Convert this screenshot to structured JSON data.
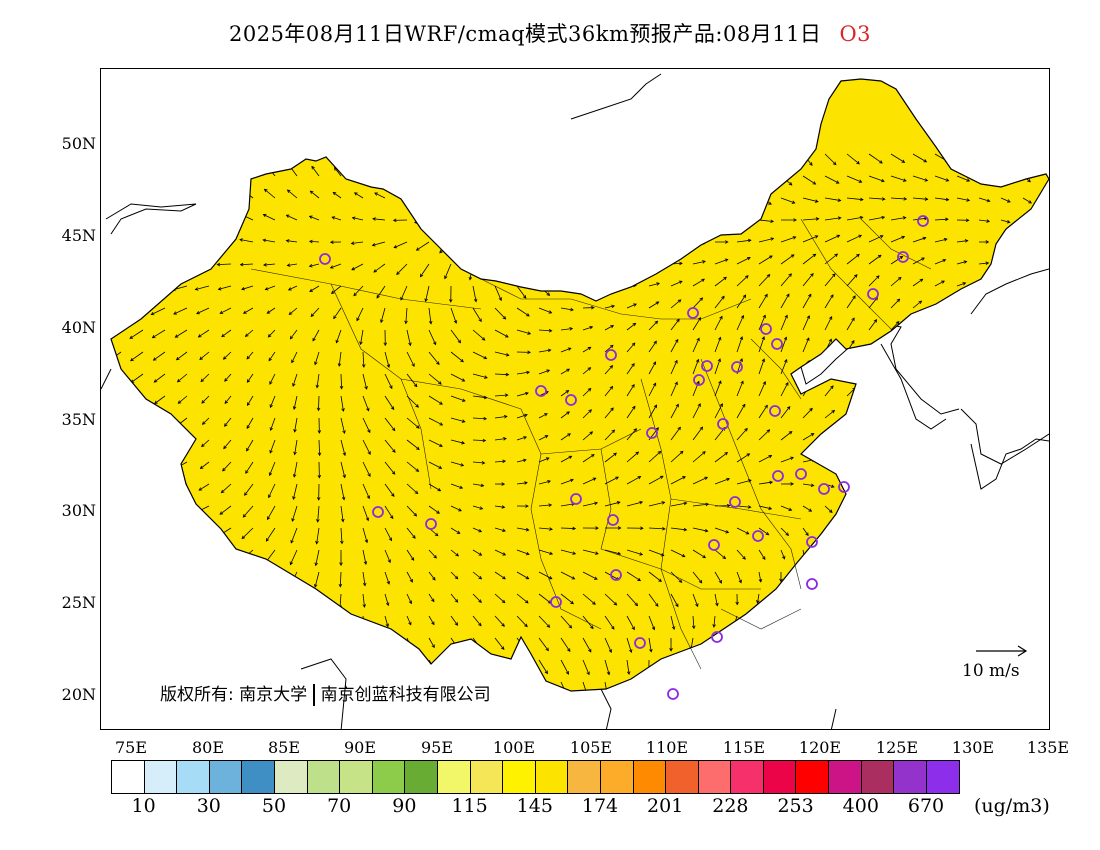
{
  "title": {
    "text": "2025年08月11日WRF/cmaq模式36km预报产品:08月11日",
    "species": "O3",
    "species_color": "#d9262b"
  },
  "map": {
    "lat_labels": [
      "50N",
      "45N",
      "40N",
      "35N",
      "30N",
      "25N",
      "20N"
    ],
    "lon_labels": [
      "75E",
      "80E",
      "85E",
      "90E",
      "95E",
      "100E",
      "105E",
      "110E",
      "115E",
      "120E",
      "125E",
      "130E",
      "135E"
    ],
    "wind_scale_label": "10 m/s",
    "copyright_left": "版权所有: 南京大学",
    "copyright_right": "南京创蓝科技有限公司",
    "station_marker_color": "#8a2be2"
  },
  "legend": {
    "colors": [
      "#ffffff",
      "#d6eefa",
      "#a6dcf5",
      "#6cb2dd",
      "#3f8ec4",
      "#deebc2",
      "#bfe08a",
      "#c6e388",
      "#8ccc4a",
      "#69ac33",
      "#f2f769",
      "#f5e658",
      "#fff200",
      "#fde400",
      "#f7b640",
      "#fcac28",
      "#fd8a00",
      "#f0612c",
      "#fd6d6d",
      "#f5306a",
      "#ec0449",
      "#fe0000",
      "#cc1486",
      "#aa2f60",
      "#9433cc",
      "#8c2eea"
    ],
    "labels": [
      "10",
      "30",
      "50",
      "70",
      "90",
      "115",
      "145",
      "174",
      "201",
      "228",
      "253",
      "400",
      "670"
    ],
    "unit": "(ug/m3)"
  }
}
